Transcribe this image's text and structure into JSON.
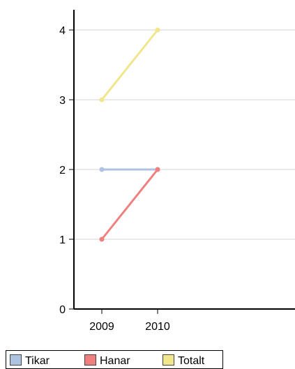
{
  "chart_data": {
    "type": "line",
    "title": "",
    "xlabel": "",
    "ylabel": "",
    "categories": [
      "2009",
      "2010"
    ],
    "ylim": [
      0,
      4
    ],
    "yticks": [
      "0",
      "1",
      "2",
      "3",
      "4"
    ],
    "grid": true,
    "legend_position": "bottom-left",
    "series": [
      {
        "name": "Tikar",
        "values": [
          2,
          2
        ],
        "color": "#aec3df"
      },
      {
        "name": "Hanar",
        "values": [
          1,
          2
        ],
        "color": "#f08080"
      },
      {
        "name": "Totalt",
        "values": [
          3,
          4
        ],
        "color": "#f0e68c"
      }
    ]
  }
}
